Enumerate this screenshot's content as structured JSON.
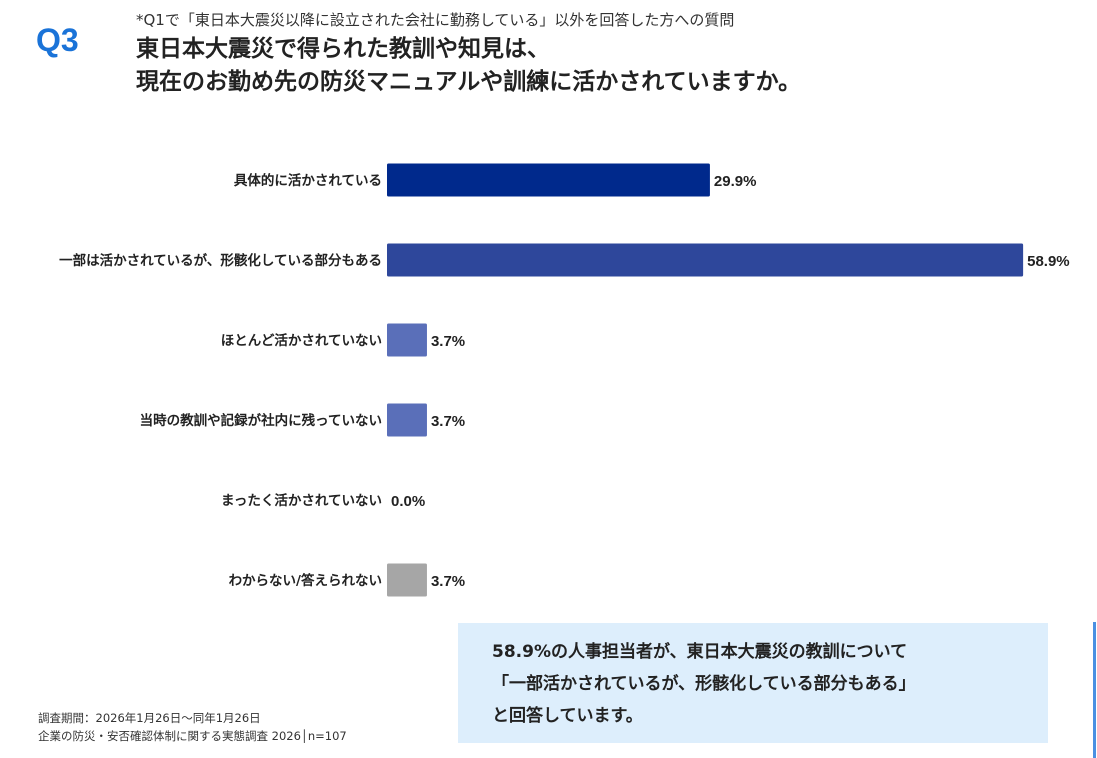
{
  "header": {
    "q_label": "Q3",
    "note": "*Q1で「東日本大震災以降に設立された会社に勤務している」以外を回答した方への質問",
    "title_line1": "東日本大震災で得られた教訓や知見は、",
    "title_line2": "現在のお勤め先の防災マニュアルや訓練に活かされていますか。"
  },
  "colors": {
    "q_label": "#1a73d8",
    "bar_dark_navy": "#00298c",
    "bar_navy": "#2e479b",
    "bar_blue": "#5a6fb9",
    "bar_gray": "#a6a6a6",
    "summary_bg": "#ddeefc"
  },
  "chart_data": {
    "type": "bar",
    "orientation": "horizontal",
    "categories": [
      "具体的に活かされている",
      "一部は活かされているが、形骸化している部分もある",
      "ほとんど活かされていない",
      "当時の教訓や記録が社内に残っていない",
      "まったく活かされていない",
      "わからない/答えられない"
    ],
    "values": [
      29.9,
      58.9,
      3.7,
      3.7,
      0.0,
      3.7
    ],
    "value_labels": [
      "29.9%",
      "58.9%",
      "3.7%",
      "3.7%",
      "0.0%",
      "3.7%"
    ],
    "bar_colors": [
      "#00298c",
      "#2e479b",
      "#5a6fb9",
      "#5a6fb9",
      "#5a6fb9",
      "#a6a6a6"
    ],
    "unit": "%",
    "grid": false,
    "legend": "none"
  },
  "summary": {
    "line1": "58.9%の人事担当者が、東日本大震災の教訓について",
    "line2": "「一部活かされているが、形骸化している部分もある」",
    "line3": "と回答しています。"
  },
  "footer": {
    "line1": "調査期間：2026年1月26日～同年1月26日",
    "line2": "企業の防災・安否確認体制に関する実態調査 2026│n=107"
  }
}
